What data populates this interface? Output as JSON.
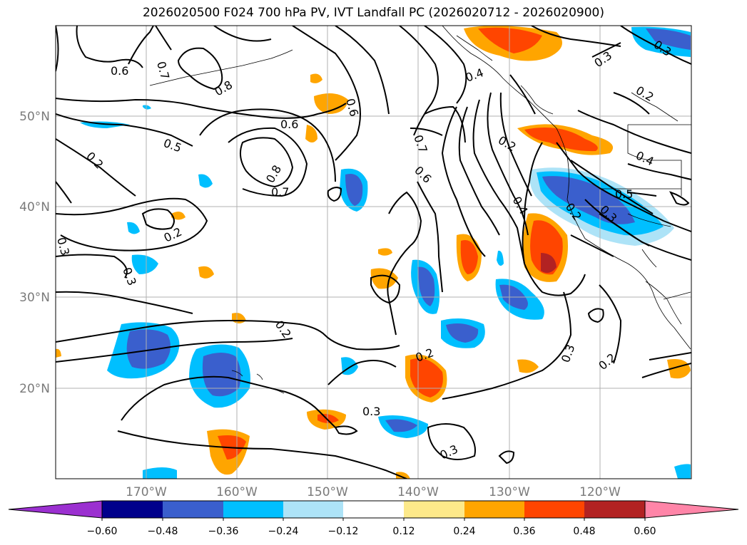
{
  "title": "2026020500 F024 700 hPa PV, IVT Landfall PC (2026020712 - 2026020900)",
  "map": {
    "lat_labels": [
      "50°N",
      "40°N",
      "30°N",
      "20°N"
    ],
    "lon_labels": [
      "170°W",
      "160°W",
      "150°W",
      "140°W",
      "130°W",
      "120°W"
    ],
    "contour_labels": [
      "0.6",
      "0.7",
      "0.8",
      "0.6",
      "0.5",
      "0.2",
      "0.6",
      "0.8",
      "0.7",
      "0.2",
      "0.3",
      "0.3",
      "0.7",
      "0.6",
      "0.4",
      "0.2",
      "0.4",
      "0.2",
      "0.3",
      "0.4",
      "0.3",
      "0.5",
      "0.2",
      "0.3",
      "0.2",
      "0.2",
      "0.3",
      "0.3",
      "0.2",
      "0.3"
    ],
    "colors": {
      "gridline": "#b0b0b0",
      "tick_label": "#7a7a7a",
      "contour": "#000000"
    }
  },
  "colorbar": {
    "ticks": [
      "−0.60",
      "−0.48",
      "−0.36",
      "−0.24",
      "−0.12",
      "0.12",
      "0.24",
      "0.36",
      "0.48",
      "0.60"
    ],
    "colors": [
      "#9b30d0",
      "#00008b",
      "#3a5fcd",
      "#00bfff",
      "#ade3f7",
      "#ffffff",
      "#fde98a",
      "#ffa500",
      "#ff4500",
      "#b22222",
      "#ff85a8"
    ]
  }
}
